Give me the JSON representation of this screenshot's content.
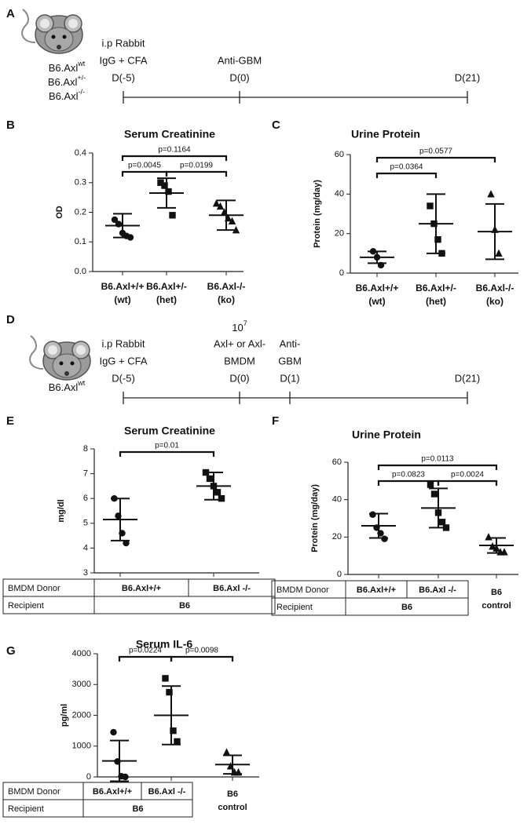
{
  "timelines": [
    {
      "panel": "A",
      "strains": [
        {
          "base": "B6.Axl",
          "sup": "wt"
        },
        {
          "base": "B6.Axl",
          "sup": "+/-"
        },
        {
          "base": "B6.Axl",
          "sup": "-/-"
        }
      ],
      "events": [
        {
          "lines": [
            "i.p Rabbit",
            "IgG + CFA"
          ],
          "day": "D(-5)"
        },
        {
          "lines": [
            "Anti-GBM"
          ],
          "day": "D(0)"
        },
        {
          "lines": [],
          "day": "D(21)"
        }
      ]
    },
    {
      "panel": "D",
      "strains": [
        {
          "base": "B6.Axl",
          "sup": "wt"
        }
      ],
      "events": [
        {
          "lines": [
            "i.p Rabbit",
            "IgG + CFA"
          ],
          "day": "D(-5)"
        },
        {
          "exp": {
            "base": "10",
            "sup": "7"
          },
          "lines": [
            "Axl+ or Axl-",
            "BMDM"
          ],
          "day": "D(0)"
        },
        {
          "lines": [
            "Anti-",
            "GBM"
          ],
          "day": "D(1)"
        },
        {
          "lines": [],
          "day": "D(21)"
        }
      ]
    }
  ],
  "chart_data": [
    {
      "type": "dot_plot",
      "panel": "B",
      "title": "Serum Creatinine",
      "ylabel": "OD",
      "ylim": [
        0,
        0.4
      ],
      "yticks": [
        {
          "value": 0,
          "label": "0.0"
        },
        0.1,
        0.2,
        0.3,
        0.4
      ],
      "categories": [
        "B6.Axl+/+",
        "B6.Axl+/-",
        "B6.Axl-/-"
      ],
      "category_sublabels": [
        "(wt)",
        "(het)",
        "(ko)"
      ],
      "groups": [
        {
          "marker": "circle",
          "points": [
            0.175,
            0.16,
            0.13,
            0.12,
            0.115
          ],
          "mean": 0.155,
          "error": 0.04
        },
        {
          "marker": "square",
          "points": [
            0.3,
            0.29,
            0.27,
            0.19
          ],
          "mean": 0.265,
          "error": 0.05
        },
        {
          "marker": "triangle",
          "points": [
            0.23,
            0.22,
            0.2,
            0.18,
            0.17,
            0.14
          ],
          "mean": 0.19,
          "error": 0.05
        }
      ],
      "comparisons": [
        {
          "from": 0,
          "to": 2,
          "label": "p=0.1164"
        },
        {
          "from": 0,
          "to": 1,
          "label": "p=0.0045"
        },
        {
          "from": 1,
          "to": 2,
          "label": "p=0.0199"
        }
      ]
    },
    {
      "type": "dot_plot",
      "panel": "C",
      "title": "Urine Protein",
      "ylabel": "Protein (mg/day)",
      "ylim": [
        0,
        60
      ],
      "yticks": [
        0,
        20,
        40,
        60
      ],
      "categories": [
        "B6.Axl+/+",
        "B6.Axl+/-",
        "B6.Axl-/-"
      ],
      "category_sublabels": [
        "(wt)",
        "(het)",
        "(ko)"
      ],
      "groups": [
        {
          "marker": "circle",
          "points": [
            11,
            8,
            4
          ],
          "mean": 8,
          "error": 3
        },
        {
          "marker": "square",
          "points": [
            34,
            25,
            17,
            10
          ],
          "mean": 25,
          "error": 15
        },
        {
          "marker": "triangle",
          "points": [
            40,
            22,
            10
          ],
          "mean": 21,
          "error": 14
        }
      ],
      "comparisons": [
        {
          "from": 0,
          "to": 2,
          "label": "p=0.0577"
        },
        {
          "from": 0,
          "to": 1,
          "label": "p=0.0364"
        }
      ]
    },
    {
      "type": "dot_plot",
      "panel": "E",
      "title": "Serum Creatinine",
      "ylabel": "mg/dl",
      "ylim": [
        3,
        8
      ],
      "yticks": [
        3,
        4,
        5,
        6,
        7,
        8
      ],
      "groups": [
        {
          "marker": "circle",
          "points": [
            6.0,
            5.3,
            4.6,
            4.2
          ],
          "mean": 5.15,
          "error": 0.85
        },
        {
          "marker": "square",
          "points": [
            7.05,
            6.8,
            6.5,
            6.25,
            6.0
          ],
          "mean": 6.5,
          "error": 0.55
        }
      ],
      "comparisons": [
        {
          "from": 0,
          "to": 1,
          "label": "p=0.01"
        }
      ],
      "table": {
        "rows": [
          [
            "BMDM Donor",
            "B6.Axl+/+",
            "B6.Axl -/-"
          ],
          [
            "Recipient",
            "B6"
          ]
        ]
      }
    },
    {
      "type": "dot_plot",
      "panel": "F",
      "title": "Urine Protein",
      "ylabel": "Protein (mg/day)",
      "ylim": [
        0,
        60
      ],
      "yticks": [
        0,
        20,
        40,
        60
      ],
      "groups": [
        {
          "marker": "circle",
          "points": [
            32,
            25,
            22,
            19
          ],
          "mean": 26,
          "error": 6.5
        },
        {
          "marker": "square",
          "points": [
            48,
            43,
            33,
            28,
            25
          ],
          "mean": 35.5,
          "error": 10.5
        },
        {
          "marker": "triangle",
          "points": [
            20,
            15,
            14,
            12,
            12
          ],
          "mean": 15.5,
          "error": 4
        }
      ],
      "comparisons": [
        {
          "from": 0,
          "to": 2,
          "label": "p=0.0113"
        },
        {
          "from": 0,
          "to": 1,
          "label": "p=0.0823"
        },
        {
          "from": 1,
          "to": 2,
          "label": "p=0.0024"
        }
      ],
      "table": {
        "rows": [
          [
            "BMDM Donor",
            "B6.Axl+/+",
            "B6.Axl -/-"
          ],
          [
            "Recipient",
            "B6"
          ]
        ]
      },
      "extra_category": [
        "B6",
        "control"
      ]
    },
    {
      "type": "dot_plot",
      "panel": "G",
      "title": "Serum IL-6",
      "ylabel": "pg/ml",
      "ylim": [
        0,
        4000
      ],
      "yticks": [
        0,
        1000,
        2000,
        3000,
        4000
      ],
      "groups": [
        {
          "marker": "circle",
          "points": [
            1450,
            500,
            20,
            0
          ],
          "mean": 520,
          "error": 660
        },
        {
          "marker": "square",
          "points": [
            3200,
            2750,
            1500,
            1150
          ],
          "mean": 2000,
          "error": 950
        },
        {
          "marker": "triangle",
          "points": [
            800,
            350,
            150,
            150
          ],
          "mean": 400,
          "error": 300
        }
      ],
      "comparisons": [
        {
          "from": 0,
          "to": 1,
          "label": "p=0.0224"
        },
        {
          "from": 1,
          "to": 2,
          "label": "p=0.0098"
        }
      ],
      "table": {
        "rows": [
          [
            "BMDM Donor",
            "B6.Axl+/+",
            "B6.Axl -/-"
          ],
          [
            "Recipient",
            "B6"
          ]
        ]
      },
      "extra_category": [
        "B6",
        "control"
      ]
    }
  ]
}
